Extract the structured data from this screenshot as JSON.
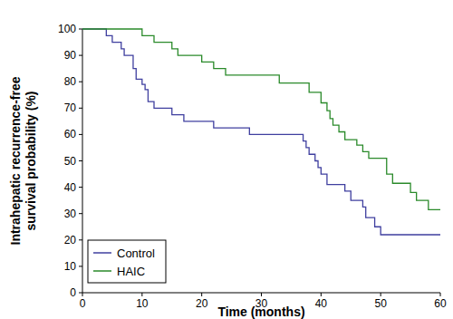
{
  "chart_data": {
    "type": "line",
    "x_label": "Time (months)",
    "y_label": "Intrahepatic recurrence-free survival probability (%)",
    "xlim": [
      0,
      60
    ],
    "xticks": [
      0,
      10,
      20,
      30,
      40,
      50,
      60
    ],
    "ylim": [
      0,
      100
    ],
    "yticks": [
      0,
      10,
      20,
      30,
      40,
      50,
      60,
      70,
      80,
      90,
      100
    ],
    "legend": "lower left",
    "grid": false,
    "line_style": "step",
    "series": [
      {
        "name": "Control",
        "color": "#3f3f9f",
        "x": [
          0,
          4,
          5,
          6.5,
          7,
          8.5,
          9,
          10,
          10.5,
          11,
          12,
          15,
          17,
          22,
          28,
          37,
          37.5,
          38,
          39,
          39.5,
          40,
          41,
          44,
          45,
          47,
          47.5,
          49,
          50,
          60
        ],
        "values": [
          100,
          97.5,
          95,
          92.5,
          90,
          85,
          81,
          79,
          77,
          72.5,
          70,
          67.5,
          65,
          62.5,
          60,
          57.5,
          55,
          52.5,
          50,
          47.5,
          45,
          41,
          38.5,
          35,
          32.5,
          28.5,
          25,
          22,
          22
        ]
      },
      {
        "name": "HAIC",
        "color": "#2a8a2a",
        "x": [
          0,
          10,
          12,
          15,
          16,
          20,
          22,
          24,
          33,
          38,
          40,
          41,
          41.5,
          42,
          43,
          44,
          46,
          47,
          48,
          51,
          52,
          55,
          56,
          58,
          60
        ],
        "values": [
          100,
          97.5,
          95,
          92.5,
          90,
          87.5,
          85,
          82.5,
          79.5,
          76,
          72,
          69,
          66,
          63.5,
          61,
          58,
          56,
          53.5,
          51,
          45,
          41.5,
          38,
          35,
          31.5,
          31.5
        ]
      }
    ]
  }
}
